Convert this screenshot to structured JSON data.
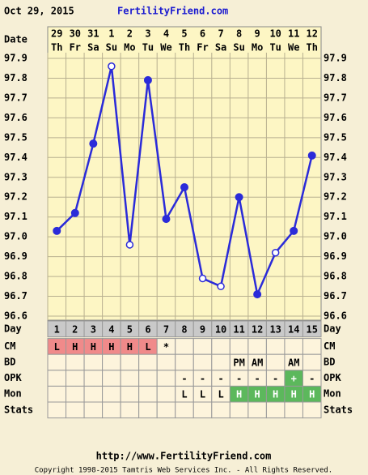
{
  "header": {
    "date": "Oct 29, 2015",
    "site": "FertilityFriend.com"
  },
  "chart_data": {
    "type": "line",
    "xlabel": "Date",
    "categories": [
      "29",
      "30",
      "31",
      "1",
      "2",
      "3",
      "4",
      "5",
      "6",
      "7",
      "8",
      "9",
      "10",
      "11",
      "12"
    ],
    "weekdays": [
      "Th",
      "Fr",
      "Sa",
      "Su",
      "Mo",
      "Tu",
      "We",
      "Th",
      "Fr",
      "Sa",
      "Su",
      "Mo",
      "Tu",
      "We",
      "Th"
    ],
    "values": [
      97.03,
      97.12,
      97.47,
      97.86,
      96.96,
      97.79,
      97.09,
      97.25,
      96.79,
      96.75,
      97.2,
      96.71,
      96.92,
      97.03,
      97.41
    ],
    "hollow": [
      false,
      false,
      false,
      true,
      true,
      false,
      false,
      false,
      true,
      true,
      false,
      false,
      true,
      false,
      false
    ],
    "color": "#2b2bd9",
    "ylim": [
      96.6,
      97.9
    ],
    "yticks": [
      96.6,
      96.7,
      96.8,
      96.9,
      {
        "value": 97.0,
        "label": "97.0"
      },
      97.1,
      97.2,
      97.3,
      97.4,
      97.5,
      97.6,
      97.7,
      97.8,
      97.9
    ],
    "grid": true
  },
  "rows": [
    {
      "label": "Day",
      "cells": [
        1,
        2,
        3,
        4,
        5,
        6,
        7,
        8,
        9,
        10,
        11,
        12,
        13,
        14,
        15
      ]
    },
    {
      "label": "CM",
      "cells": [
        {
          "text": "L",
          "color": "#f08a8a"
        },
        {
          "text": "H",
          "color": "#f08a8a"
        },
        {
          "text": "H",
          "color": "#f08a8a"
        },
        {
          "text": "H",
          "color": "#f08a8a"
        },
        {
          "text": "H",
          "color": "#f08a8a"
        },
        {
          "text": "L",
          "color": "#f08a8a"
        },
        {
          "text": "*"
        },
        null,
        null,
        null,
        null,
        null,
        null,
        null,
        null
      ]
    },
    {
      "label": "BD",
      "cells": [
        null,
        null,
        null,
        null,
        null,
        null,
        null,
        null,
        null,
        null,
        {
          "text": "PM"
        },
        {
          "text": "AM"
        },
        null,
        {
          "text": "AM"
        },
        null
      ]
    },
    {
      "label": "OPK",
      "cells": [
        null,
        null,
        null,
        null,
        null,
        null,
        null,
        {
          "text": "-"
        },
        {
          "text": "-"
        },
        {
          "text": "-"
        },
        {
          "text": "-"
        },
        {
          "text": "-"
        },
        {
          "text": "-"
        },
        {
          "text": "+",
          "color": "#5cb85c"
        },
        {
          "text": "-"
        }
      ]
    },
    {
      "label": "Mon",
      "cells": [
        null,
        null,
        null,
        null,
        null,
        null,
        null,
        {
          "text": "L"
        },
        {
          "text": "L"
        },
        {
          "text": "L"
        },
        {
          "text": "H",
          "color": "#5cb85c"
        },
        {
          "text": "H",
          "color": "#5cb85c"
        },
        {
          "text": "H",
          "color": "#5cb85c"
        },
        {
          "text": "H",
          "color": "#5cb85c"
        },
        {
          "text": "H",
          "color": "#5cb85c"
        }
      ]
    },
    {
      "label": "Stats",
      "cells": [
        null,
        null,
        null,
        null,
        null,
        null,
        null,
        null,
        null,
        null,
        null,
        null,
        null,
        null,
        null
      ]
    }
  ],
  "footer": {
    "url": "http://www.FertilityFriend.com",
    "copyright": "Copyright 1998-2015 Tamtris Web Services Inc. - All Rights Reserved."
  }
}
